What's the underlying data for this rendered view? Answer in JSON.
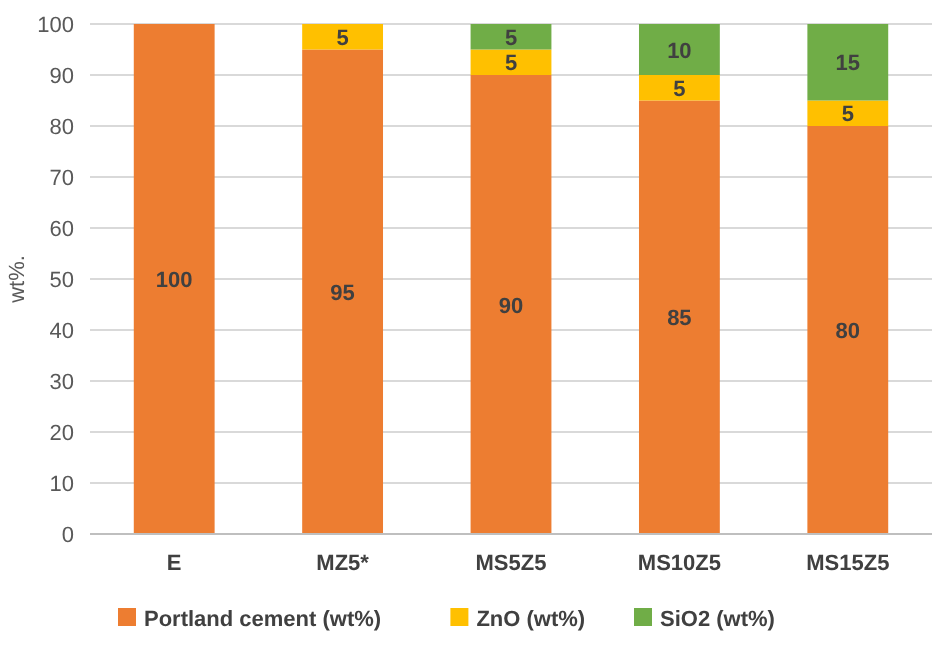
{
  "chart_data": {
    "type": "bar",
    "stacked": true,
    "ylabel": "wt%.",
    "categories": [
      "E",
      "MZ5*",
      "MS5Z5",
      "MS10Z5",
      "MS15Z5"
    ],
    "series": [
      {
        "name": "Portland cement (wt%)",
        "color": "#ed7d31",
        "values": [
          100,
          95,
          90,
          85,
          80
        ]
      },
      {
        "name": "ZnO (wt%)",
        "color": "#ffc000",
        "values": [
          null,
          5,
          5,
          5,
          5
        ]
      },
      {
        "name": "SiO2 (wt%)",
        "color": "#70ad47",
        "values": [
          null,
          null,
          5,
          10,
          15
        ]
      }
    ],
    "ylim": [
      0,
      100
    ],
    "yticks": [
      0,
      10,
      20,
      30,
      40,
      50,
      60,
      70,
      80,
      90,
      100
    ],
    "grid": "y",
    "legend": "bottom",
    "data_labels": true
  }
}
